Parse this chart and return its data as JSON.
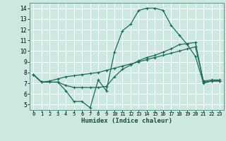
{
  "title": "",
  "xlabel": "Humidex (Indice chaleur)",
  "background_color": "#cce8e0",
  "grid_color": "#ffffff",
  "line_color": "#1a6b5a",
  "x_min": -0.5,
  "x_max": 23.5,
  "y_min": 4.5,
  "y_max": 14.5,
  "yticks": [
    5,
    6,
    7,
    8,
    9,
    10,
    11,
    12,
    13,
    14
  ],
  "xticks": [
    0,
    1,
    2,
    3,
    4,
    5,
    6,
    7,
    8,
    9,
    10,
    11,
    12,
    13,
    14,
    15,
    16,
    17,
    18,
    19,
    20,
    21,
    22,
    23
  ],
  "series1_x": [
    0,
    1,
    2,
    3,
    4,
    5,
    6,
    7,
    8,
    9,
    10,
    11,
    12,
    13,
    14,
    15,
    16,
    17,
    18,
    19,
    20,
    21,
    22,
    23
  ],
  "series1_y": [
    7.8,
    7.1,
    7.1,
    7.1,
    6.3,
    5.3,
    5.3,
    4.7,
    7.3,
    6.3,
    9.9,
    11.9,
    12.5,
    13.8,
    14.0,
    14.0,
    13.8,
    12.4,
    11.5,
    10.6,
    9.5,
    7.0,
    7.2,
    7.2
  ],
  "series2_x": [
    0,
    1,
    2,
    3,
    4,
    5,
    6,
    7,
    8,
    9,
    10,
    11,
    12,
    13,
    14,
    15,
    16,
    17,
    18,
    19,
    20,
    21,
    22,
    23
  ],
  "series2_y": [
    7.8,
    7.1,
    7.1,
    7.1,
    6.8,
    6.6,
    6.6,
    6.6,
    6.6,
    6.7,
    7.6,
    8.3,
    8.7,
    9.1,
    9.4,
    9.6,
    9.9,
    10.2,
    10.6,
    10.7,
    10.8,
    7.1,
    7.2,
    7.2
  ],
  "series3_x": [
    0,
    1,
    2,
    3,
    4,
    5,
    6,
    7,
    8,
    9,
    10,
    11,
    12,
    13,
    14,
    15,
    16,
    17,
    18,
    19,
    20,
    21,
    22,
    23
  ],
  "series3_y": [
    7.8,
    7.1,
    7.2,
    7.4,
    7.6,
    7.7,
    7.8,
    7.9,
    8.0,
    8.2,
    8.4,
    8.6,
    8.8,
    9.0,
    9.2,
    9.4,
    9.6,
    9.8,
    10.0,
    10.2,
    10.4,
    7.2,
    7.3,
    7.3
  ]
}
